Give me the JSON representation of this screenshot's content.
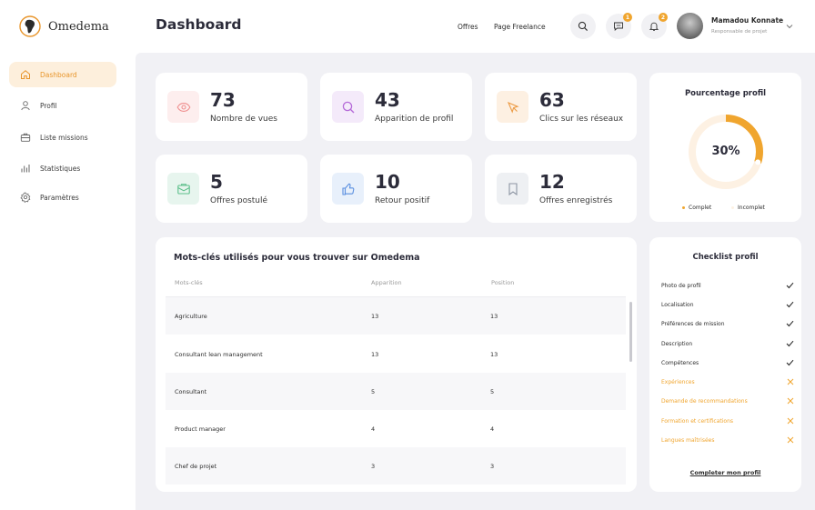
{
  "brand": {
    "name": "Omedema",
    "accent": "#f0a52e"
  },
  "sidebar": {
    "items": [
      {
        "label": "Dashboard",
        "icon": "home-icon",
        "active": true
      },
      {
        "label": "Profil",
        "icon": "user-icon"
      },
      {
        "label": "Liste missions",
        "icon": "briefcase-icon"
      },
      {
        "label": "Statistiques",
        "icon": "bar-chart-icon"
      },
      {
        "label": "Paramètres",
        "icon": "gear-icon"
      }
    ]
  },
  "header": {
    "title": "Dashboard",
    "links": [
      "Offres",
      "Page Freelance"
    ],
    "messages_badge": "1",
    "notifications_badge": "2",
    "user": {
      "name": "Mamadou Konnate",
      "role": "Responsable de projet"
    }
  },
  "stats": [
    {
      "value": "73",
      "label": "Nombre de vues",
      "icon": "eye-icon"
    },
    {
      "value": "43",
      "label": "Apparition de profil",
      "icon": "search-icon"
    },
    {
      "value": "63",
      "label": "Clics sur les réseaux",
      "icon": "cursor-icon"
    },
    {
      "value": "5",
      "label": "Offres postulé",
      "icon": "envelope-icon"
    },
    {
      "value": "10",
      "label": "Retour positif",
      "icon": "thumbs-up-icon"
    },
    {
      "value": "12",
      "label": "Offres enregistrés",
      "icon": "bookmark-icon"
    }
  ],
  "profile_completion": {
    "title": "Pourcentage profil",
    "value_label": "30%",
    "fraction": 0.3,
    "legend": [
      "Complet",
      "Incomplet"
    ]
  },
  "keywords": {
    "title": "Mots-clés utilisés pour vous trouver sur Omedema",
    "columns": [
      "Mots-clés",
      "Apparition",
      "Position"
    ],
    "rows": [
      [
        "Agriculture",
        "13",
        "13"
      ],
      [
        "Consultant lean management",
        "13",
        "13"
      ],
      [
        "Consultant",
        "5",
        "5"
      ],
      [
        "Product manager",
        "4",
        "4"
      ],
      [
        "Chef de projet",
        "3",
        "3"
      ]
    ]
  },
  "checklist": {
    "title": "Checklist profil",
    "items": [
      {
        "label": "Photo de profil",
        "done": true
      },
      {
        "label": "Localisation",
        "done": true
      },
      {
        "label": "Préférences de mission",
        "done": true
      },
      {
        "label": "Description",
        "done": true
      },
      {
        "label": "Compétences",
        "done": true
      },
      {
        "label": "Expériences",
        "done": false
      },
      {
        "label": "Demande de recommandations",
        "done": false
      },
      {
        "label": "Formation et certifications",
        "done": false
      },
      {
        "label": "Langues maîtrisées",
        "done": false
      }
    ],
    "cta": "Completer mon profil"
  }
}
